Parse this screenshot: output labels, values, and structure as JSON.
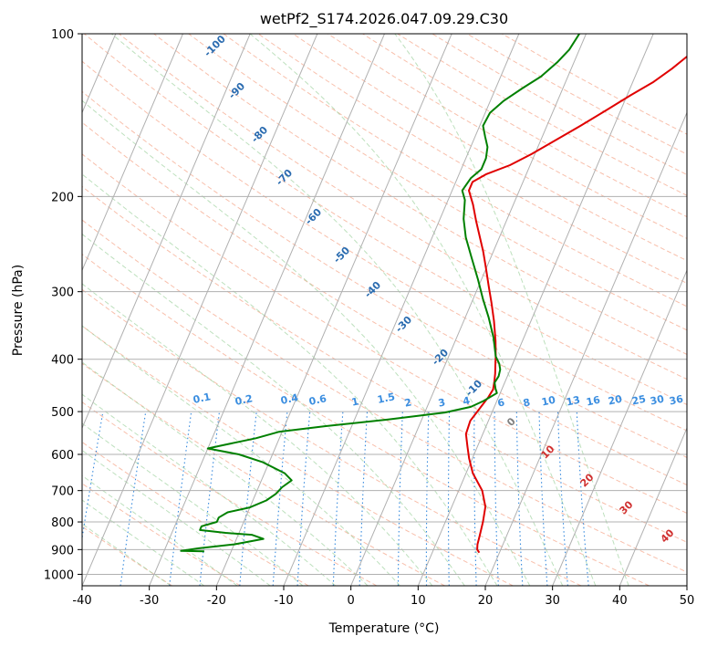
{
  "chart_data": {
    "type": "line",
    "title": "wetPf2_S174.2026.047.09.29.C30",
    "xlabel": "Temperature (°C)",
    "ylabel": "Pressure (hPa)",
    "xlim": [
      -40,
      50
    ],
    "ylim": [
      1050,
      100
    ],
    "y_scale": "log",
    "grid": true,
    "x_ticks": [
      "-40",
      "-30",
      "-20",
      "-10",
      "0",
      "10",
      "20",
      "30",
      "40",
      "50"
    ],
    "y_ticks": [
      {
        "value": 100,
        "label": "100"
      },
      {
        "value": 200,
        "label": "200"
      },
      {
        "value": 300,
        "label": "300"
      },
      {
        "value": 400,
        "label": "400"
      },
      {
        "value": 500,
        "label": "500"
      },
      {
        "value": 600,
        "label": "600"
      },
      {
        "value": 700,
        "label": "700"
      },
      {
        "value": 800,
        "label": "800"
      },
      {
        "value": 900,
        "label": "900"
      },
      {
        "value": 1000,
        "label": "1000"
      }
    ],
    "series": [
      {
        "color": "#e00000",
        "points": [
          [
            17.0,
            912
          ],
          [
            16.5,
            900
          ],
          [
            16.2,
            880
          ],
          [
            16.0,
            850
          ],
          [
            15.6,
            800
          ],
          [
            15.0,
            750
          ],
          [
            13.5,
            700
          ],
          [
            11.0,
            650
          ],
          [
            9.5,
            610
          ],
          [
            8.5,
            580
          ],
          [
            7.5,
            550
          ],
          [
            7.3,
            520
          ],
          [
            8.0,
            490
          ],
          [
            8.5,
            470
          ],
          [
            8.7,
            455
          ],
          [
            8.4,
            440
          ],
          [
            8.0,
            425
          ],
          [
            7.5,
            410
          ],
          [
            7.0,
            395
          ],
          [
            6.0,
            370
          ],
          [
            4.5,
            340
          ],
          [
            3.0,
            315
          ],
          [
            1.5,
            293
          ],
          [
            0.0,
            272
          ],
          [
            -1.5,
            253
          ],
          [
            -3.0,
            237
          ],
          [
            -4.5,
            222
          ],
          [
            -6.0,
            207
          ],
          [
            -7.5,
            195
          ],
          [
            -7.5,
            188
          ],
          [
            -6.0,
            182
          ],
          [
            -3.0,
            175
          ],
          [
            -0.5,
            167
          ],
          [
            2.0,
            158
          ],
          [
            5.0,
            148
          ],
          [
            8.0,
            138
          ],
          [
            10.5,
            130
          ],
          [
            13.0,
            123
          ],
          [
            15.0,
            116
          ],
          [
            16.5,
            110
          ],
          [
            17.5,
            105
          ],
          [
            18.5,
            100
          ]
        ]
      },
      {
        "color": "#008000",
        "points": [
          [
            -24.0,
            907
          ],
          [
            -27.5,
            905
          ],
          [
            -25.0,
            895
          ],
          [
            -20.0,
            880
          ],
          [
            -16.0,
            860
          ],
          [
            -18.0,
            845
          ],
          [
            -22.0,
            838
          ],
          [
            -26.0,
            828
          ],
          [
            -26.0,
            815
          ],
          [
            -24.0,
            800
          ],
          [
            -24.0,
            785
          ],
          [
            -23.0,
            768
          ],
          [
            -20.0,
            752
          ],
          [
            -18.0,
            730
          ],
          [
            -17.0,
            710
          ],
          [
            -16.5,
            690
          ],
          [
            -15.5,
            670
          ],
          [
            -17.0,
            650
          ],
          [
            -21.0,
            620
          ],
          [
            -25.0,
            600
          ],
          [
            -30.0,
            585
          ],
          [
            -28.0,
            577
          ],
          [
            -23.5,
            560
          ],
          [
            -20.5,
            545
          ],
          [
            -14.0,
            532
          ],
          [
            -5.0,
            517
          ],
          [
            3.0,
            502
          ],
          [
            6.5,
            490
          ],
          [
            8.0,
            478
          ],
          [
            9.5,
            462
          ],
          [
            9.0,
            453
          ],
          [
            8.5,
            442
          ],
          [
            8.7,
            430
          ],
          [
            8.5,
            418
          ],
          [
            8.0,
            408
          ],
          [
            7.0,
            395
          ],
          [
            5.5,
            365
          ],
          [
            3.5,
            335
          ],
          [
            1.5,
            310
          ],
          [
            -0.5,
            285
          ],
          [
            -3.0,
            258
          ],
          [
            -5.0,
            238
          ],
          [
            -6.5,
            220
          ],
          [
            -7.5,
            203
          ],
          [
            -8.5,
            195
          ],
          [
            -8.0,
            185
          ],
          [
            -7.0,
            178
          ],
          [
            -7.0,
            170
          ],
          [
            -7.5,
            162
          ],
          [
            -8.5,
            155
          ],
          [
            -9.5,
            148
          ],
          [
            -9.3,
            140
          ],
          [
            -8.0,
            133
          ],
          [
            -6.0,
            126
          ],
          [
            -4.0,
            120
          ],
          [
            -2.5,
            113
          ],
          [
            -1.5,
            107
          ],
          [
            -1.0,
            100
          ]
        ]
      }
    ],
    "annotations": {
      "dry_adiabats": [
        "-100",
        "-90",
        "-80",
        "-70",
        "-60",
        "-50",
        "-40",
        "-30",
        "-20",
        "-10"
      ],
      "mixing_ratios": [
        "0.1",
        "0.2",
        "0.4",
        "0.6",
        "1",
        "1.5",
        "2",
        "3",
        "4",
        "6",
        "8",
        "10",
        "13",
        "16",
        "20",
        "25",
        "30",
        "36"
      ],
      "moist_adiabats": [
        "0",
        "10",
        "20",
        "30",
        "40"
      ]
    }
  }
}
